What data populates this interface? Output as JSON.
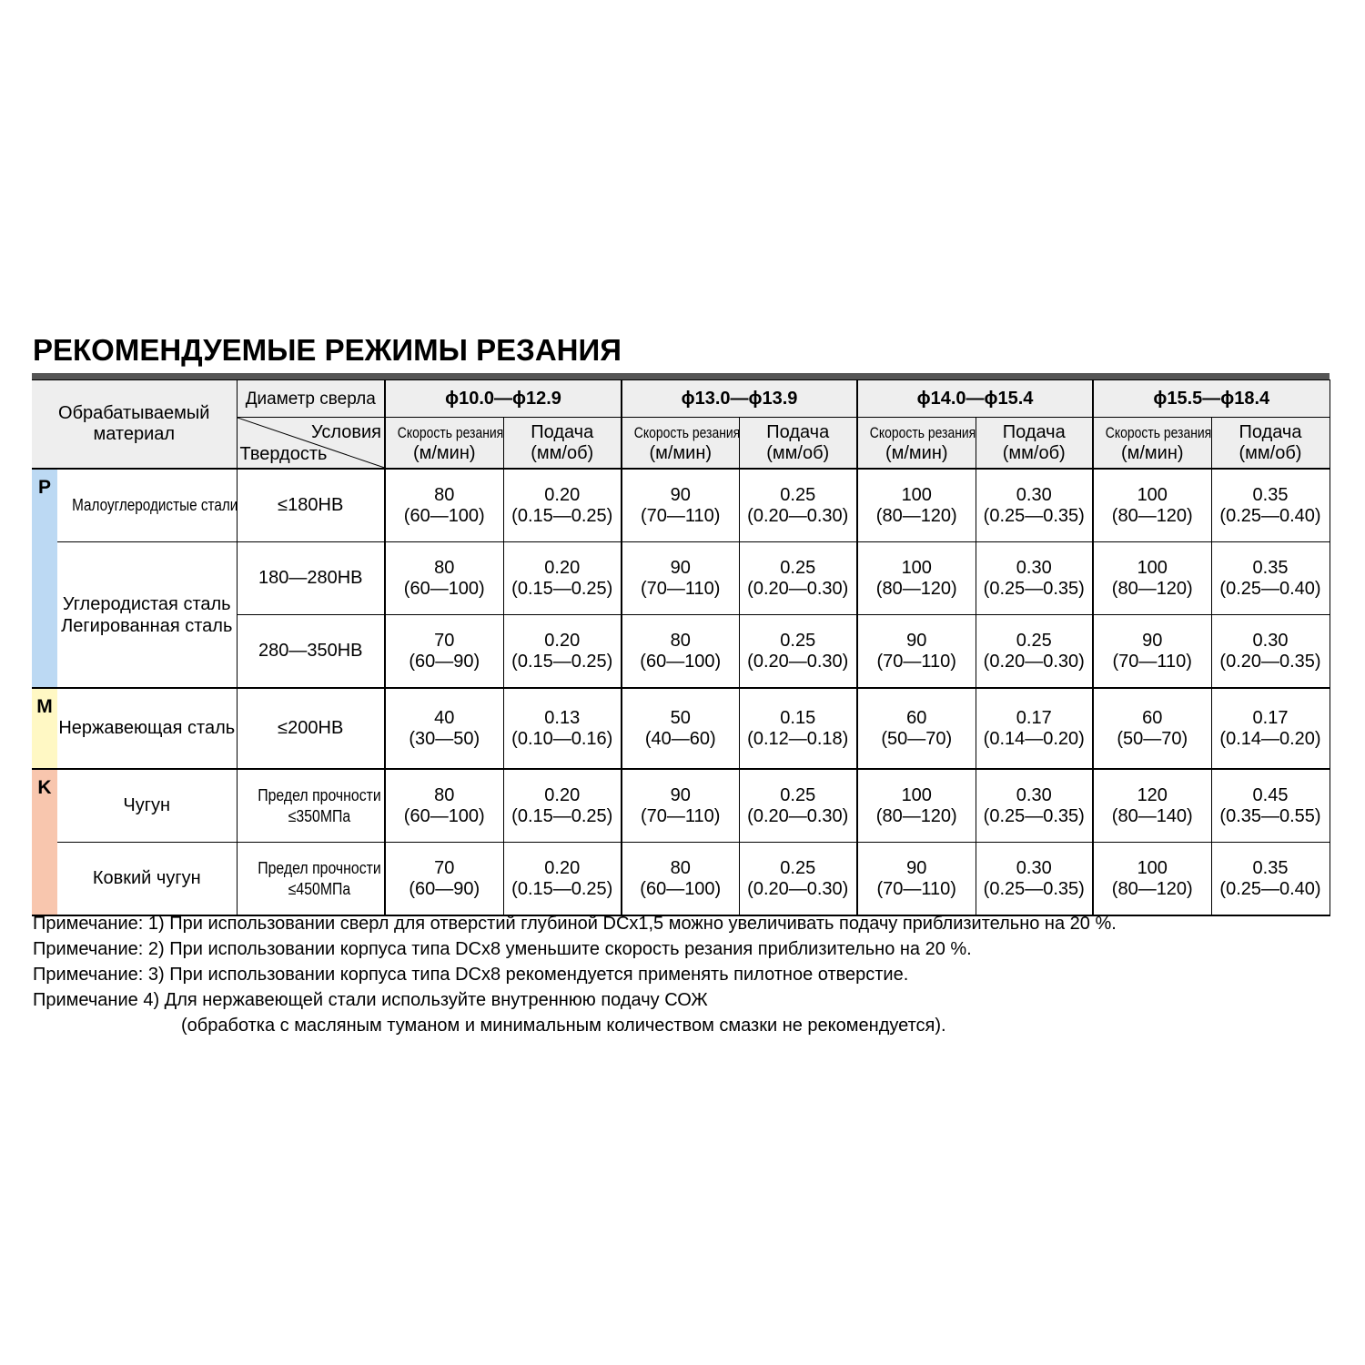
{
  "title": "РЕКОМЕНДУЕМЫЕ РЕЖИМЫ РЕЗАНИЯ",
  "header": {
    "material": "Обрабатываемый материал",
    "diameter": "Диаметр сверла",
    "conditions": "Условия",
    "hardness": "Твердость",
    "groups": [
      "ϕ10.0—ϕ12.9",
      "ϕ13.0—ϕ13.9",
      "ϕ14.0—ϕ15.4",
      "ϕ15.5—ϕ18.4"
    ],
    "speed": "Скорость резания",
    "speed_unit": "(м/мин)",
    "feed": "Подача",
    "feed_unit": "(мм/об)"
  },
  "colors": {
    "P": "#bcd9f3",
    "M": "#fff8c4",
    "K": "#f8c6ae"
  },
  "rows": [
    {
      "letter": "P",
      "material": "Малоуглеродистые стали",
      "hardness": "≤180HB",
      "values": [
        [
          "80",
          "(60—100)"
        ],
        [
          "0.20",
          "(0.15—0.25)"
        ],
        [
          "90",
          "(70—110)"
        ],
        [
          "0.25",
          "(0.20—0.30)"
        ],
        [
          "100",
          "(80—120)"
        ],
        [
          "0.30",
          "(0.25—0.35)"
        ],
        [
          "100",
          "(80—120)"
        ],
        [
          "0.35",
          "(0.25—0.40)"
        ]
      ]
    },
    {
      "material": "Углеродистая сталь Легированная сталь",
      "hardness": "180—280HB",
      "values": [
        [
          "80",
          "(60—100)"
        ],
        [
          "0.20",
          "(0.15—0.25)"
        ],
        [
          "90",
          "(70—110)"
        ],
        [
          "0.25",
          "(0.20—0.30)"
        ],
        [
          "100",
          "(80—120)"
        ],
        [
          "0.30",
          "(0.25—0.35)"
        ],
        [
          "100",
          "(80—120)"
        ],
        [
          "0.35",
          "(0.25—0.40)"
        ]
      ]
    },
    {
      "hardness": "280—350HB",
      "values": [
        [
          "70",
          "(60—90)"
        ],
        [
          "0.20",
          "(0.15—0.25)"
        ],
        [
          "80",
          "(60—100)"
        ],
        [
          "0.25",
          "(0.20—0.30)"
        ],
        [
          "90",
          "(70—110)"
        ],
        [
          "0.25",
          "(0.20—0.30)"
        ],
        [
          "90",
          "(70—110)"
        ],
        [
          "0.30",
          "(0.20—0.35)"
        ]
      ]
    },
    {
      "letter": "M",
      "material": "Нержавеющая сталь",
      "hardness": "≤200HB",
      "values": [
        [
          "40",
          "(30—50)"
        ],
        [
          "0.13",
          "(0.10—0.16)"
        ],
        [
          "50",
          "(40—60)"
        ],
        [
          "0.15",
          "(0.12—0.18)"
        ],
        [
          "60",
          "(50—70)"
        ],
        [
          "0.17",
          "(0.14—0.20)"
        ],
        [
          "60",
          "(50—70)"
        ],
        [
          "0.17",
          "(0.14—0.20)"
        ]
      ]
    },
    {
      "letter": "K",
      "material": "Чугун",
      "hardness": "Предел прочности ≤350МПа",
      "values": [
        [
          "80",
          "(60—100)"
        ],
        [
          "0.20",
          "(0.15—0.25)"
        ],
        [
          "90",
          "(70—110)"
        ],
        [
          "0.25",
          "(0.20—0.30)"
        ],
        [
          "100",
          "(80—120)"
        ],
        [
          "0.30",
          "(0.25—0.35)"
        ],
        [
          "120",
          "(80—140)"
        ],
        [
          "0.45",
          "(0.35—0.55)"
        ]
      ]
    },
    {
      "material": "Ковкий чугун",
      "hardness": "Предел прочности ≤450МПа",
      "values": [
        [
          "70",
          "(60—90)"
        ],
        [
          "0.20",
          "(0.15—0.25)"
        ],
        [
          "80",
          "(60—100)"
        ],
        [
          "0.25",
          "(0.20—0.30)"
        ],
        [
          "90",
          "(70—110)"
        ],
        [
          "0.30",
          "(0.25—0.35)"
        ],
        [
          "100",
          "(80—120)"
        ],
        [
          "0.35",
          "(0.25—0.40)"
        ]
      ]
    }
  ],
  "notes": [
    "Примечание: 1) При использовании сверл для отверстий глубиной DCx1,5 можно увеличивать подачу приблизительно на 20 %.",
    "Примечание: 2) При использовании корпуса типа DCx8 уменьшите скорость резания приблизительно на 20 %.",
    "Примечание: 3) При использовании корпуса типа DCx8 рекомендуется применять пилотное отверстие.",
    "Примечание 4) Для нержавеющей стали используйте внутреннюю подачу СОЖ",
    "(обработка с масляным туманом и минимальным количеством смазки не рекомендуется)."
  ]
}
